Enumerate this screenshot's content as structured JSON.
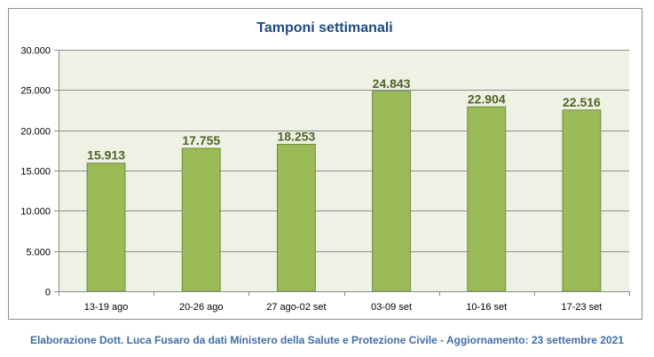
{
  "chart_data": {
    "type": "bar",
    "title": "Tamponi settimanali",
    "categories": [
      "13-19 ago",
      "20-26 ago",
      "27 ago-02 set",
      "03-09 set",
      "10-16 set",
      "17-23 set"
    ],
    "values": [
      15913,
      17755,
      18253,
      24843,
      22904,
      22516
    ],
    "value_labels": [
      "15.913",
      "17.755",
      "18.253",
      "24.843",
      "22.904",
      "22.516"
    ],
    "yticks": [
      0,
      5000,
      10000,
      15000,
      20000,
      25000,
      30000
    ],
    "ytick_labels": [
      "0",
      "5.000",
      "10.000",
      "15.000",
      "20.000",
      "25.000",
      "30.000"
    ],
    "ylim": [
      0,
      30000
    ],
    "xlabel": "",
    "ylabel": "",
    "grid": true,
    "legend": "none",
    "colors": {
      "bar": "#9bbb59",
      "bar_border": "#71893f",
      "plot_bg": "#eef2e4",
      "gridline": "#8c8c8c",
      "title": "#1f497d",
      "data_label": "#4f6228"
    }
  },
  "footer": {
    "text": "Elaborazione Dott. Luca Fusaro da dati Ministero della Salute e Protezione Civile - Aggiornamento: 23 settembre 2021"
  }
}
